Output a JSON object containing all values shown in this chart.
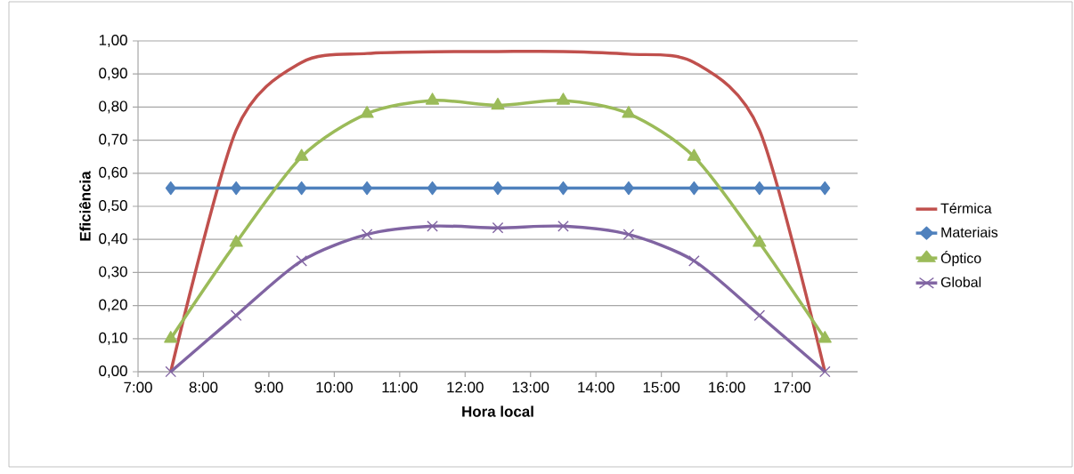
{
  "chart_data": {
    "type": "line",
    "xlabel": "Hora local",
    "ylabel": "Eficiência",
    "xlim": [
      7,
      18
    ],
    "xticks": [
      {
        "value": 7,
        "label": "7:00"
      },
      {
        "value": 8,
        "label": "8:00"
      },
      {
        "value": 9,
        "label": "9:00"
      },
      {
        "value": 10,
        "label": "10:00"
      },
      {
        "value": 11,
        "label": "11:00"
      },
      {
        "value": 12,
        "label": "12:00"
      },
      {
        "value": 13,
        "label": "13:00"
      },
      {
        "value": 14,
        "label": "14:00"
      },
      {
        "value": 15,
        "label": "15:00"
      },
      {
        "value": 16,
        "label": "16:00"
      },
      {
        "value": 17,
        "label": "17:00"
      }
    ],
    "ylim": [
      0,
      1
    ],
    "yticks": [
      {
        "value": 0,
        "label": "0,00"
      },
      {
        "value": 0.1,
        "label": "0,10"
      },
      {
        "value": 0.2,
        "label": "0,20"
      },
      {
        "value": 0.3,
        "label": "0,30"
      },
      {
        "value": 0.4,
        "label": "0,40"
      },
      {
        "value": 0.5,
        "label": "0,50"
      },
      {
        "value": 0.6,
        "label": "0,60"
      },
      {
        "value": 0.7,
        "label": "0,70"
      },
      {
        "value": 0.8,
        "label": "0,80"
      },
      {
        "value": 0.9,
        "label": "0,90"
      },
      {
        "value": 1,
        "label": "1,00"
      }
    ],
    "x": [
      7.5,
      8.5,
      9.5,
      10.5,
      11.5,
      12.5,
      13.5,
      14.5,
      15.5,
      16.5,
      17.5
    ],
    "grid": "y",
    "legend": "right",
    "line_style": "solid",
    "series": [
      {
        "name": "Térmica",
        "color": "#c0504d",
        "marker": "none",
        "values": [
          0,
          0.73,
          0.935,
          0.962,
          0.967,
          0.968,
          0.968,
          0.96,
          0.935,
          0.73,
          0
        ]
      },
      {
        "name": "Materiais",
        "color": "#4f81bd",
        "marker": "diamond",
        "values": [
          0.555,
          0.555,
          0.555,
          0.555,
          0.555,
          0.555,
          0.555,
          0.555,
          0.555,
          0.555,
          0.555
        ]
      },
      {
        "name": "Óptico",
        "color": "#9bbb59",
        "marker": "triangle",
        "values": [
          0.1,
          0.39,
          0.65,
          0.78,
          0.82,
          0.805,
          0.82,
          0.78,
          0.65,
          0.39,
          0.1
        ]
      },
      {
        "name": "Global",
        "color": "#8064a2",
        "marker": "cross",
        "values": [
          0,
          0.17,
          0.335,
          0.415,
          0.44,
          0.435,
          0.44,
          0.415,
          0.335,
          0.17,
          0
        ]
      }
    ]
  }
}
